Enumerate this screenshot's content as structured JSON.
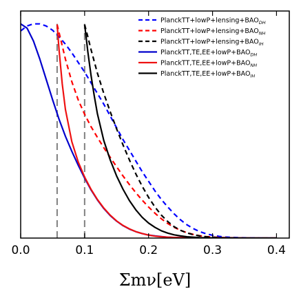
{
  "chart_data": {
    "type": "line",
    "xlabel": "Σmν[eV]",
    "xlim": [
      0.0,
      0.42
    ],
    "ylim": [
      0,
      1.06
    ],
    "x_ticks": [
      "0.0",
      "0.1",
      "0.2",
      "0.3",
      "0.4"
    ],
    "x_tick_values": [
      0.0,
      0.1,
      0.2,
      0.3,
      0.4
    ],
    "y_ticks_shown": false,
    "grid": false,
    "legend_position": "top-right",
    "vertical_markers": [
      {
        "x": 0.057,
        "style": "dashed",
        "color": "#808080"
      },
      {
        "x": 0.1,
        "style": "dashed",
        "color": "#808080"
      }
    ],
    "series": [
      {
        "name": "PlanckTT+lowP+lensing+BAO",
        "subscript": "DH",
        "color": "#0000ff",
        "dash": "dashed",
        "x": [
          0.0,
          0.01,
          0.02,
          0.03,
          0.04,
          0.05,
          0.06,
          0.07,
          0.08,
          0.09,
          0.1,
          0.11,
          0.12,
          0.13,
          0.14,
          0.15,
          0.16,
          0.17,
          0.18,
          0.19,
          0.2,
          0.21,
          0.22,
          0.23,
          0.24,
          0.25,
          0.26,
          0.27,
          0.28,
          0.29,
          0.3,
          0.31,
          0.32,
          0.33,
          0.34,
          0.36,
          0.38,
          0.4
        ],
        "y": [
          0.967,
          0.99,
          1.0,
          1.0,
          0.99,
          0.97,
          0.94,
          0.905,
          0.865,
          0.82,
          0.775,
          0.725,
          0.675,
          0.625,
          0.57,
          0.515,
          0.46,
          0.41,
          0.36,
          0.31,
          0.265,
          0.22,
          0.18,
          0.145,
          0.113,
          0.085,
          0.062,
          0.044,
          0.03,
          0.02,
          0.013,
          0.008,
          0.005,
          0.003,
          0.002,
          0.001,
          0.0,
          0.0
        ]
      },
      {
        "name": "PlanckTT+lowP+lensing+BAO",
        "subscript": "NH",
        "color": "#ff0000",
        "dash": "dashed",
        "x": [
          0.057,
          0.06,
          0.07,
          0.08,
          0.09,
          0.1,
          0.11,
          0.12,
          0.13,
          0.14,
          0.15,
          0.16,
          0.17,
          0.18,
          0.19,
          0.2,
          0.21,
          0.22,
          0.23,
          0.24,
          0.25,
          0.26,
          0.27,
          0.28,
          0.29,
          0.3,
          0.31,
          0.32,
          0.34,
          0.36,
          0.4
        ],
        "y": [
          0.997,
          0.96,
          0.835,
          0.73,
          0.645,
          0.578,
          0.52,
          0.47,
          0.422,
          0.377,
          0.333,
          0.29,
          0.25,
          0.212,
          0.177,
          0.145,
          0.116,
          0.09,
          0.068,
          0.05,
          0.036,
          0.025,
          0.017,
          0.011,
          0.007,
          0.005,
          0.003,
          0.002,
          0.001,
          0.0,
          0.0
        ]
      },
      {
        "name": "PlanckTT+lowP+lensing+BAO",
        "subscript": "IH",
        "color": "#000000",
        "dash": "dashed",
        "x": [
          0.1,
          0.105,
          0.11,
          0.12,
          0.13,
          0.14,
          0.15,
          0.16,
          0.17,
          0.18,
          0.19,
          0.2,
          0.21,
          0.22,
          0.23,
          0.24,
          0.25,
          0.26,
          0.27,
          0.28,
          0.29,
          0.3,
          0.31,
          0.32,
          0.34,
          0.36,
          0.4
        ],
        "y": [
          0.997,
          0.94,
          0.88,
          0.77,
          0.675,
          0.59,
          0.51,
          0.435,
          0.365,
          0.3,
          0.242,
          0.19,
          0.145,
          0.107,
          0.077,
          0.053,
          0.036,
          0.024,
          0.016,
          0.01,
          0.006,
          0.004,
          0.002,
          0.001,
          0.0,
          0.0,
          0.0
        ]
      },
      {
        "name": "PlanckTT,TE,EE+lowP+BAO",
        "subscript": "DH",
        "color": "#0000cc",
        "dash": "solid",
        "x": [
          0.0,
          0.01,
          0.02,
          0.03,
          0.04,
          0.05,
          0.06,
          0.07,
          0.08,
          0.09,
          0.1,
          0.11,
          0.12,
          0.13,
          0.14,
          0.15,
          0.16,
          0.17,
          0.18,
          0.19,
          0.2,
          0.21,
          0.22,
          0.23,
          0.24,
          0.25,
          0.27,
          0.3,
          0.35,
          0.4
        ],
        "y": [
          1.0,
          0.98,
          0.92,
          0.835,
          0.74,
          0.645,
          0.555,
          0.475,
          0.405,
          0.34,
          0.28,
          0.225,
          0.178,
          0.138,
          0.105,
          0.079,
          0.058,
          0.042,
          0.03,
          0.021,
          0.014,
          0.01,
          0.007,
          0.004,
          0.003,
          0.002,
          0.001,
          0.0,
          0.0,
          0.0
        ]
      },
      {
        "name": "PlanckTT,TE,EE+lowP+BAO",
        "subscript": "NH",
        "color": "#ee1111",
        "dash": "solid",
        "x": [
          0.057,
          0.06,
          0.065,
          0.07,
          0.08,
          0.09,
          0.1,
          0.11,
          0.12,
          0.13,
          0.14,
          0.15,
          0.16,
          0.17,
          0.18,
          0.19,
          0.2,
          0.21,
          0.22,
          0.23,
          0.24,
          0.25,
          0.27,
          0.3,
          0.35,
          0.4
        ],
        "y": [
          0.997,
          0.88,
          0.72,
          0.6,
          0.45,
          0.355,
          0.285,
          0.228,
          0.18,
          0.14,
          0.107,
          0.08,
          0.059,
          0.043,
          0.03,
          0.021,
          0.014,
          0.009,
          0.006,
          0.004,
          0.003,
          0.002,
          0.001,
          0.0,
          0.0,
          0.0
        ]
      },
      {
        "name": "PlanckTT,TE,EE+lowP+BAO",
        "subscript": "IH",
        "color": "#000000",
        "dash": "solid",
        "x": [
          0.1,
          0.105,
          0.11,
          0.115,
          0.12,
          0.13,
          0.14,
          0.15,
          0.16,
          0.17,
          0.18,
          0.19,
          0.2,
          0.21,
          0.22,
          0.23,
          0.24,
          0.25,
          0.26,
          0.27,
          0.28,
          0.3,
          0.35,
          0.4
        ],
        "y": [
          0.997,
          0.87,
          0.76,
          0.665,
          0.58,
          0.455,
          0.365,
          0.29,
          0.228,
          0.175,
          0.132,
          0.097,
          0.07,
          0.05,
          0.034,
          0.023,
          0.015,
          0.01,
          0.006,
          0.004,
          0.002,
          0.001,
          0.0,
          0.0
        ]
      }
    ]
  }
}
